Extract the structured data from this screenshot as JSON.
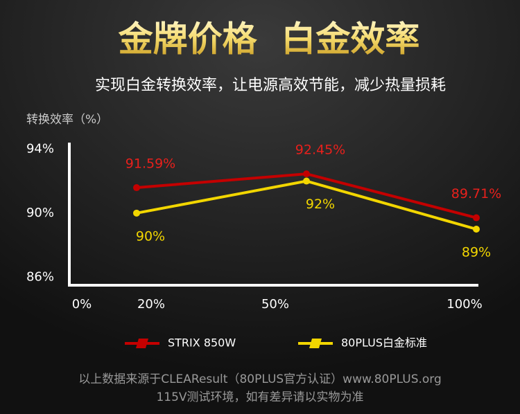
{
  "chart_data": {
    "type": "line",
    "title": "金牌价格  白金效率",
    "subtitle": "实现白金转换效率，让电源高效节能，减少热量损耗",
    "y_label": "转换效率（%）",
    "origin_label": "0%",
    "categories": [
      "20%",
      "50%",
      "100%"
    ],
    "series": [
      {
        "name": "STRIX 850W",
        "color": "#c40000",
        "label_color": "#e8201c",
        "values": [
          91.59,
          92.45,
          89.71
        ],
        "value_labels": [
          "91.59%",
          "92.45%",
          "89.71%"
        ]
      },
      {
        "name": "80PLUS白金标准",
        "color": "#f2d600",
        "label_color": "#f2d600",
        "values": [
          90,
          92,
          89
        ],
        "value_labels": [
          "90%",
          "92%",
          "89%"
        ]
      }
    ],
    "ylim": [
      85.5,
      94.4
    ],
    "yticks": [
      {
        "value": 86,
        "label": "86%"
      },
      {
        "value": 90,
        "label": "90%"
      },
      {
        "value": 94,
        "label": "94%"
      }
    ],
    "footnotes": [
      "以上数据来源于CLEAResult（80PLUS官方认证）www.80PLUS.org",
      "115V测试环境，如有差异请以实物为准"
    ]
  }
}
